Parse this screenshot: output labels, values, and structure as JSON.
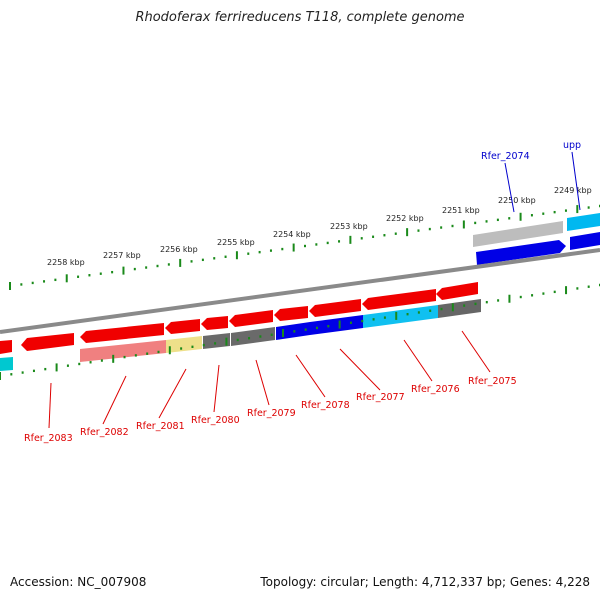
{
  "title": "Rhodoferax ferrireducens T118, complete genome",
  "footer": {
    "accession": "Accession: NC_007908",
    "summary": "Topology: circular; Length: 4,712,337 bp; Genes: 4,228"
  },
  "colors": {
    "backbone": "#808080",
    "tick": "#1a8a1a",
    "forward_label": "#0000cc",
    "reverse_label": "#dd0000"
  },
  "scale": {
    "unit": "kbp",
    "ticks": [
      {
        "kbp": 2258,
        "label": "2258 kbp"
      },
      {
        "kbp": 2257,
        "label": "2257 kbp"
      },
      {
        "kbp": 2256,
        "label": "2256 kbp"
      },
      {
        "kbp": 2255,
        "label": "2255 kbp"
      },
      {
        "kbp": 2254,
        "label": "2254 kbp"
      },
      {
        "kbp": 2253,
        "label": "2253 kbp"
      },
      {
        "kbp": 2252,
        "label": "2252 kbp"
      },
      {
        "kbp": 2251,
        "label": "2251 kbp"
      },
      {
        "kbp": 2250,
        "label": "2250 kbp"
      },
      {
        "kbp": 2249,
        "label": "2249 kbp"
      }
    ]
  },
  "genes_forward": [
    {
      "name": "Rfer_2074",
      "label": "Rfer_2074"
    },
    {
      "name": "upp",
      "label": "upp"
    }
  ],
  "genes_reverse": [
    {
      "name": "Rfer_2083",
      "label": "Rfer_2083"
    },
    {
      "name": "Rfer_2082",
      "label": "Rfer_2082"
    },
    {
      "name": "Rfer_2081",
      "label": "Rfer_2081"
    },
    {
      "name": "Rfer_2080",
      "label": "Rfer_2080"
    },
    {
      "name": "Rfer_2079",
      "label": "Rfer_2079"
    },
    {
      "name": "Rfer_2078",
      "label": "Rfer_2078"
    },
    {
      "name": "Rfer_2077",
      "label": "Rfer_2077"
    },
    {
      "name": "Rfer_2076",
      "label": "Rfer_2076"
    },
    {
      "name": "Rfer_2075",
      "label": "Rfer_2075"
    }
  ]
}
